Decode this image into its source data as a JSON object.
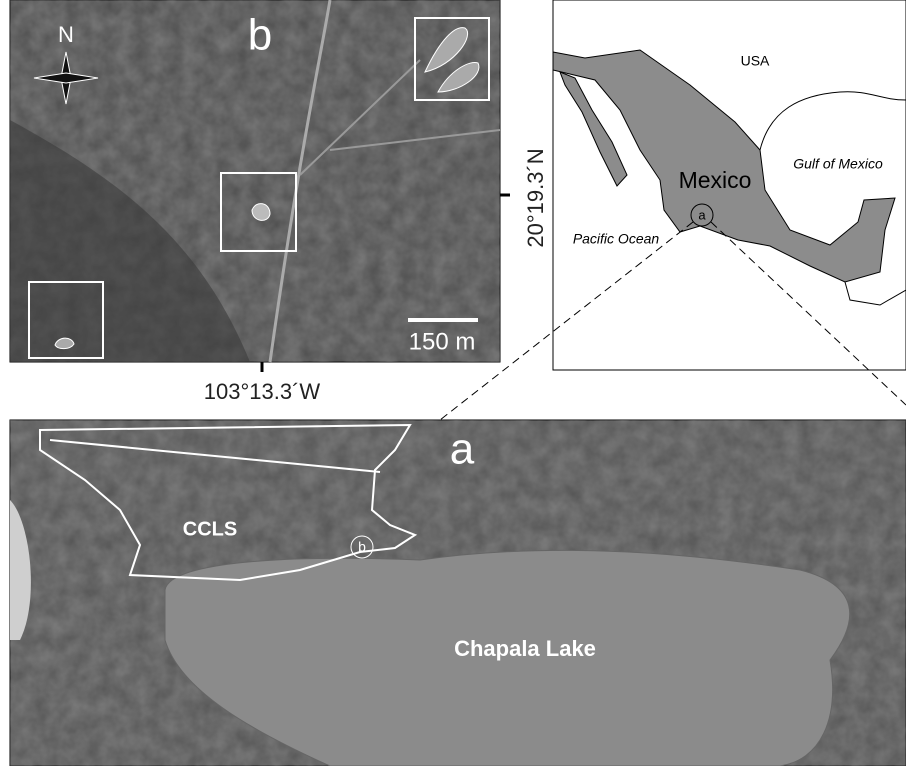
{
  "panel_b": {
    "north": "N",
    "label": "b",
    "scale_bar": "150 m",
    "latitude": "20°19.3´N",
    "longitude": "103°13.3´W"
  },
  "inset_map": {
    "usa": "USA",
    "gulf": "Gulf of Mexico",
    "country": "Mexico",
    "site": "a",
    "ocean": "Pacific Ocean"
  },
  "panel_a": {
    "label": "a",
    "area": "CCLS",
    "site": "b",
    "lake": "Chapala Lake"
  }
}
